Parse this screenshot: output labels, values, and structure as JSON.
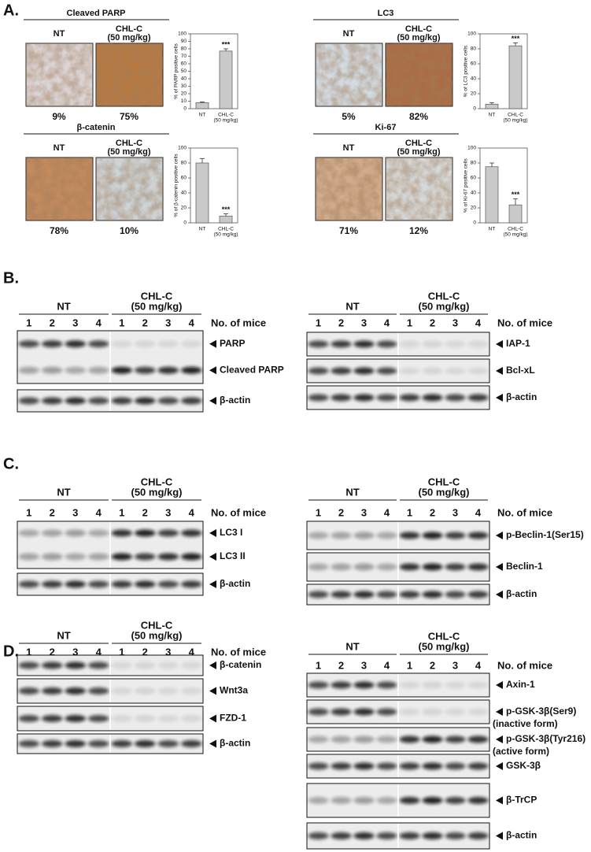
{
  "panels": {
    "A": {
      "label": "A.",
      "items": [
        {
          "title": "Cleaved PARP",
          "image_labels": [
            [
              "NT"
            ],
            [
              "CHL-C",
              "(50 mg/kg)"
            ]
          ],
          "percents": [
            "9%",
            "75%"
          ],
          "chart": {
            "type": "bar",
            "y_label": "% of PARP positive cells",
            "categories": [
              [
                "NT"
              ],
              [
                "CHL-C",
                "(50 mg/kg)"
              ]
            ],
            "values": [
              8,
              77
            ],
            "errors": [
              1,
              3
            ],
            "annotations": [
              null,
              "***"
            ],
            "ylim": [
              0,
              100
            ],
            "yticks": [
              0,
              10,
              20,
              30,
              40,
              50,
              60,
              70,
              80,
              90,
              100
            ]
          }
        },
        {
          "title": "LC3",
          "image_labels": [
            [
              "NT"
            ],
            [
              "CHL-C",
              "(50 mg/kg)"
            ]
          ],
          "percents": [
            "5%",
            "82%"
          ],
          "chart": {
            "type": "bar",
            "y_label": "% of LC3 positive cells",
            "categories": [
              [
                "NT"
              ],
              [
                "CHL-C",
                "(50 mg/kg)"
              ]
            ],
            "values": [
              6,
              84
            ],
            "errors": [
              2,
              4
            ],
            "annotations": [
              null,
              "***"
            ],
            "ylim": [
              0,
              100
            ],
            "yticks": [
              0,
              20,
              40,
              60,
              80,
              100
            ]
          }
        },
        {
          "title": "β-catenin",
          "image_labels": [
            [
              "NT"
            ],
            [
              "CHL-C",
              "(50 mg/kg)"
            ]
          ],
          "percents": [
            "78%",
            "10%"
          ],
          "chart": {
            "type": "bar",
            "y_label": "% of β-catenin positive cells",
            "categories": [
              [
                "NT"
              ],
              [
                "CHL-C",
                "(50 mg/kg)"
              ]
            ],
            "values": [
              80,
              9
            ],
            "errors": [
              6,
              3
            ],
            "annotations": [
              null,
              "***"
            ],
            "ylim": [
              0,
              100
            ],
            "yticks": [
              0,
              20,
              40,
              60,
              80,
              100
            ]
          }
        },
        {
          "title": "Ki-67",
          "image_labels": [
            [
              "NT"
            ],
            [
              "CHL-C",
              "(50 mg/kg)"
            ]
          ],
          "percents": [
            "71%",
            "12%"
          ],
          "chart": {
            "type": "bar",
            "y_label": "% of Ki-67 positive cells",
            "categories": [
              [
                "NT"
              ],
              [
                "CHL-C",
                "(50 mg/kg)"
              ]
            ],
            "values": [
              75,
              24
            ],
            "errors": [
              5,
              8
            ],
            "annotations": [
              null,
              "***"
            ],
            "ylim": [
              0,
              100
            ],
            "yticks": [
              0,
              20,
              40,
              60,
              80,
              100
            ]
          }
        }
      ]
    },
    "B": {
      "label": "B.",
      "blots": [
        {
          "groups": [
            [
              "NT"
            ],
            [
              "CHL-C",
              "(50 mg/kg)"
            ]
          ],
          "lanes": [
            "1",
            "2",
            "3",
            "4",
            "1",
            "2",
            "3",
            "4"
          ],
          "lanes_caption": "No. of mice",
          "boxes": [
            {
              "labels": [
                "PARP",
                "Cleaved PARP"
              ]
            },
            {
              "labels": [
                "β-actin"
              ]
            }
          ]
        },
        {
          "groups": [
            [
              "NT"
            ],
            [
              "CHL-C",
              "(50 mg/kg)"
            ]
          ],
          "lanes": [
            "1",
            "2",
            "3",
            "4",
            "1",
            "2",
            "3",
            "4"
          ],
          "lanes_caption": "No. of mice",
          "boxes": [
            {
              "labels": [
                "IAP-1"
              ]
            },
            {
              "labels": [
                "Bcl-xL"
              ]
            },
            {
              "labels": [
                "β-actin"
              ]
            }
          ]
        }
      ]
    },
    "C": {
      "label": "C.",
      "blots": [
        {
          "groups": [
            [
              "NT"
            ],
            [
              "CHL-C",
              "(50 mg/kg)"
            ]
          ],
          "lanes": [
            "1",
            "2",
            "3",
            "4",
            "1",
            "2",
            "3",
            "4"
          ],
          "lanes_caption": "No. of mice",
          "boxes": [
            {
              "labels": [
                "LC3 I",
                "LC3 II"
              ]
            },
            {
              "labels": [
                "β-actin"
              ]
            }
          ]
        },
        {
          "groups": [
            [
              "NT"
            ],
            [
              "CHL-C",
              "(50 mg/kg)"
            ]
          ],
          "lanes": [
            "1",
            "2",
            "3",
            "4",
            "1",
            "2",
            "3",
            "4"
          ],
          "lanes_caption": "No. of mice",
          "boxes": [
            {
              "labels": [
                "p-Beclin-1(Ser15)"
              ]
            },
            {
              "labels": [
                "Beclin-1"
              ]
            },
            {
              "labels": [
                "β-actin"
              ]
            }
          ]
        }
      ]
    },
    "D": {
      "label": "D.",
      "blots": [
        {
          "groups": [
            [
              "NT"
            ],
            [
              "CHL-C",
              "(50 mg/kg)"
            ]
          ],
          "lanes": [
            "1",
            "2",
            "3",
            "4",
            "1",
            "2",
            "3",
            "4"
          ],
          "lanes_caption": "No. of mice",
          "boxes": [
            {
              "labels": [
                "β-catenin"
              ]
            },
            {
              "labels": [
                "Wnt3a"
              ]
            },
            {
              "labels": [
                "FZD-1"
              ]
            },
            {
              "labels": [
                "β-actin"
              ]
            }
          ]
        },
        {
          "groups": [
            [
              "NT"
            ],
            [
              "CHL-C",
              "(50 mg/kg)"
            ]
          ],
          "lanes": [
            "1",
            "2",
            "3",
            "4",
            "1",
            "2",
            "3",
            "4"
          ],
          "lanes_caption": "No. of mice",
          "boxes": [
            {
              "labels": [
                "Axin-1"
              ]
            },
            {
              "labels": [
                "p-GSK-3β(Ser9)"
              ],
              "notes": [
                "(inactive form)"
              ]
            },
            {
              "labels": [
                "p-GSK-3β(Tyr216)"
              ],
              "notes": [
                "(active form)"
              ]
            },
            {
              "labels": [
                "GSK-3β"
              ]
            },
            {
              "labels": [
                "β-TrCP"
              ]
            },
            {
              "labels": [
                "β-actin"
              ]
            }
          ]
        }
      ]
    }
  }
}
